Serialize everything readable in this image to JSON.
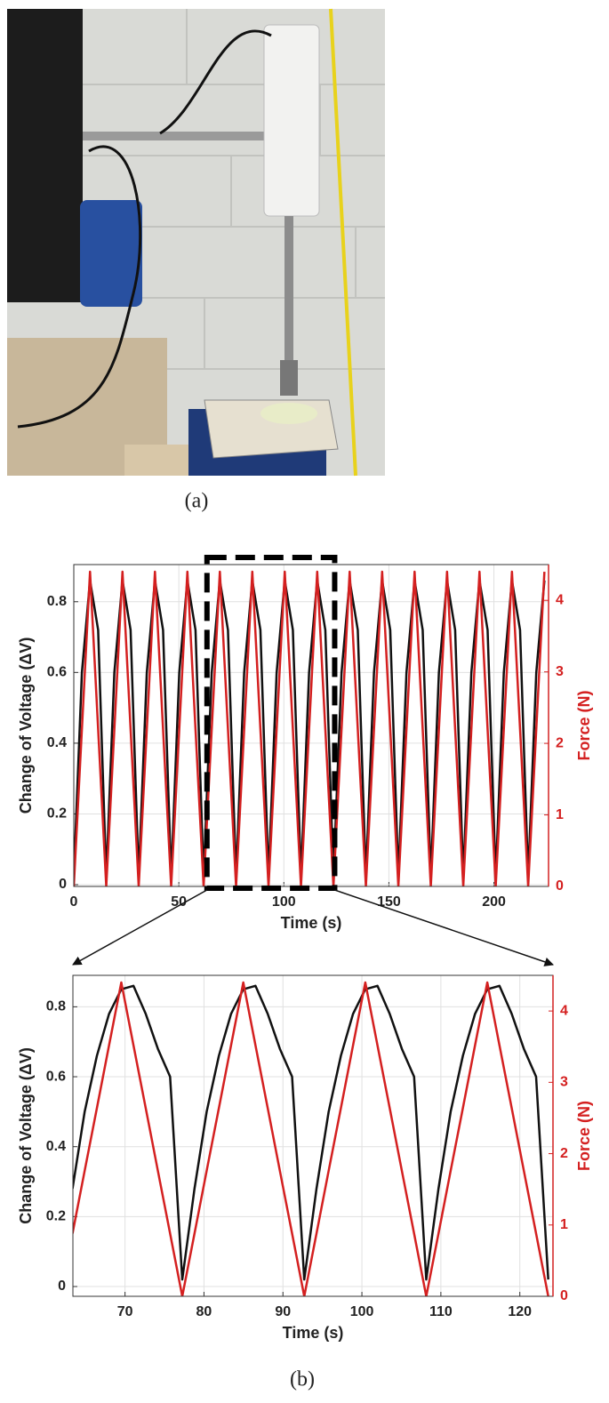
{
  "figure": {
    "label_a": "(a)",
    "label_b": "(b)"
  },
  "chart_data": [
    {
      "type": "line",
      "xlabel": "Time (s)",
      "ylabel": "Change of Voltage (ΔV)",
      "y2label": "Force (N)",
      "grid": true,
      "xlim": [
        0,
        226
      ],
      "xticks": [
        0,
        50,
        100,
        150,
        200
      ],
      "ylim": [
        -0.005,
        0.905
      ],
      "yticks": [
        0,
        0.2,
        0.4,
        0.6,
        0.8
      ],
      "y2lim": [
        0,
        4.5
      ],
      "y2ticks": [
        0,
        1,
        2,
        3,
        4
      ],
      "x": [
        0,
        3.86,
        7.73,
        11.59,
        15.45,
        19.31,
        23.18,
        27.04,
        30.9,
        34.76,
        38.63,
        42.49,
        46.35,
        50.21,
        54.08,
        57.94,
        61.8,
        65.66,
        69.53,
        73.39,
        77.25,
        81.11,
        84.98,
        88.84,
        92.7,
        96.56,
        100.43,
        104.29,
        108.15,
        112.01,
        115.88,
        119.74,
        123.6,
        127.46,
        131.33,
        135.19,
        139.05,
        142.91,
        146.78,
        150.64,
        154.5,
        158.36,
        162.23,
        166.09,
        169.95,
        173.81,
        177.68,
        181.54,
        185.4,
        189.26,
        193.13,
        196.99,
        200.85,
        204.71,
        208.58,
        212.44,
        216.3,
        220.16,
        224.03
      ],
      "series": [
        {
          "color": "#111111",
          "values": [
            0.02,
            0.6,
            0.86,
            0.72,
            0.02,
            0.6,
            0.86,
            0.72,
            0.02,
            0.6,
            0.86,
            0.72,
            0.02,
            0.6,
            0.86,
            0.72,
            0.02,
            0.6,
            0.86,
            0.72,
            0.02,
            0.6,
            0.86,
            0.72,
            0.02,
            0.6,
            0.86,
            0.72,
            0.02,
            0.6,
            0.86,
            0.72,
            0.02,
            0.6,
            0.86,
            0.72,
            0.02,
            0.6,
            0.86,
            0.72,
            0.02,
            0.6,
            0.86,
            0.72,
            0.02,
            0.6,
            0.86,
            0.72,
            0.02,
            0.6,
            0.86,
            0.72,
            0.02,
            0.6,
            0.86,
            0.72,
            0.02,
            0.6,
            0.86
          ]
        },
        {
          "color": "#d42020",
          "axis": "y2",
          "values": [
            0,
            2.2,
            4.4,
            2.2,
            0,
            2.2,
            4.4,
            2.2,
            0,
            2.2,
            4.4,
            2.2,
            0,
            2.2,
            4.4,
            2.2,
            0,
            2.2,
            4.4,
            2.2,
            0,
            2.2,
            4.4,
            2.2,
            0,
            2.2,
            4.4,
            2.2,
            0,
            2.2,
            4.4,
            2.2,
            0,
            2.2,
            4.4,
            2.2,
            0,
            2.2,
            4.4,
            2.2,
            0,
            2.2,
            4.4,
            2.2,
            0,
            2.2,
            4.4,
            2.2,
            0,
            2.2,
            4.4,
            2.2,
            0,
            2.2,
            4.4,
            2.2,
            0,
            2.2,
            4.4
          ]
        }
      ]
    },
    {
      "type": "line",
      "xlabel": "Time (s)",
      "ylabel": "Change of Voltage (ΔV)",
      "y2label": "Force (N)",
      "grid": true,
      "xlim": [
        63.4,
        124.2
      ],
      "xticks": [
        70,
        80,
        90,
        100,
        110,
        120
      ],
      "ylim": [
        -0.028,
        0.89
      ],
      "yticks": [
        0,
        0.2,
        0.4,
        0.6,
        0.8
      ],
      "y2lim": [
        0,
        4.5
      ],
      "y2ticks": [
        0,
        1,
        2,
        3,
        4
      ],
      "x": [
        63.35,
        64.89,
        66.44,
        67.98,
        69.53,
        71.07,
        72.62,
        74.16,
        75.71,
        77.25,
        78.8,
        80.34,
        81.89,
        83.43,
        84.98,
        86.52,
        88.07,
        89.61,
        91.16,
        92.7,
        94.25,
        95.79,
        97.34,
        98.88,
        100.43,
        101.97,
        103.52,
        105.06,
        106.61,
        108.15,
        109.7,
        111.24,
        112.79,
        114.33,
        115.88,
        117.42,
        118.97,
        120.51,
        122.06,
        123.6
      ],
      "series": [
        {
          "color": "#111111",
          "values": [
            0.28,
            0.5,
            0.66,
            0.78,
            0.85,
            0.86,
            0.78,
            0.68,
            0.6,
            0.02,
            0.28,
            0.5,
            0.66,
            0.78,
            0.85,
            0.86,
            0.78,
            0.68,
            0.6,
            0.02,
            0.28,
            0.5,
            0.66,
            0.78,
            0.85,
            0.86,
            0.78,
            0.68,
            0.6,
            0.02,
            0.28,
            0.5,
            0.66,
            0.78,
            0.85,
            0.86,
            0.78,
            0.68,
            0.6,
            0.02
          ]
        },
        {
          "color": "#d42020",
          "axis": "y2",
          "values": [
            0.88,
            1.76,
            2.64,
            3.52,
            4.4,
            3.52,
            2.64,
            1.76,
            0.88,
            0,
            0.88,
            1.76,
            2.64,
            3.52,
            4.4,
            3.52,
            2.64,
            1.76,
            0.88,
            0,
            0.88,
            1.76,
            2.64,
            3.52,
            4.4,
            3.52,
            2.64,
            1.76,
            0.88,
            0,
            0.88,
            1.76,
            2.64,
            3.52,
            4.4,
            3.52,
            2.64,
            1.76,
            0.88,
            0
          ]
        }
      ]
    }
  ]
}
